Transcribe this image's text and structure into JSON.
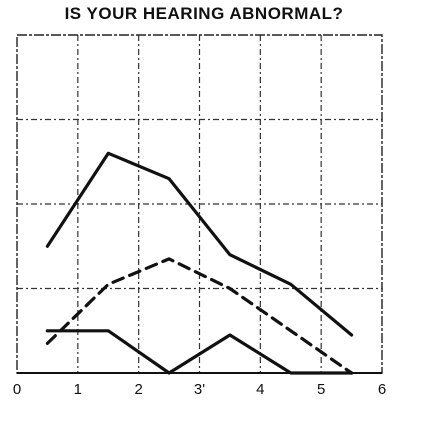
{
  "chart_data": {
    "type": "line",
    "title": "IS YOUR HEARING ABNORMAL?",
    "xlabel": "",
    "ylabel": "",
    "xlim": [
      0,
      6
    ],
    "ylim": [
      0,
      4
    ],
    "x_ticks": [
      0,
      1,
      2,
      3,
      4,
      5,
      6
    ],
    "x_tick_labels": [
      "0",
      "1",
      "2",
      "3'",
      "4",
      "5",
      "6"
    ],
    "grid": true,
    "legend": "none",
    "series": [
      {
        "style": "solid",
        "color": "#111111",
        "x": [
          0.5,
          1.5,
          2.5,
          3.5,
          4.5,
          5.5
        ],
        "y": [
          1.5,
          2.6,
          2.3,
          1.4,
          1.05,
          0.45
        ]
      },
      {
        "style": "dashed",
        "color": "#111111",
        "x": [
          0.5,
          1.5,
          2.5,
          3.5,
          4.5,
          5.5
        ],
        "y": [
          0.35,
          1.05,
          1.35,
          1.0,
          0.5,
          0.0
        ]
      },
      {
        "style": "solid",
        "color": "#111111",
        "x": [
          0.5,
          1.5,
          2.5,
          3.5,
          4.5,
          5.5
        ],
        "y": [
          0.5,
          0.5,
          0.0,
          0.45,
          0.0,
          0.0
        ]
      }
    ]
  }
}
